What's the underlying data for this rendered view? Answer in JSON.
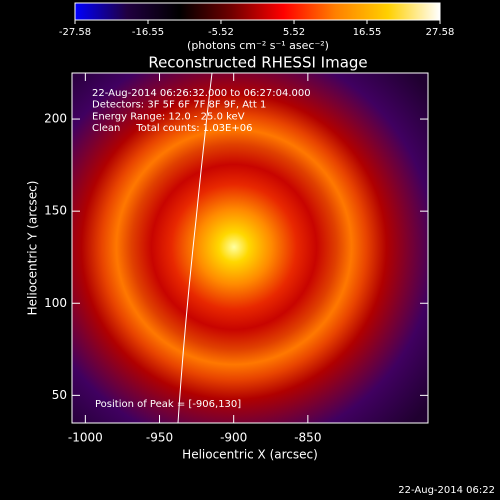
{
  "chart_data": {
    "type": "image",
    "title": "Reconstructed RHESSI Image",
    "xlabel": "Heliocentric X (arcsec)",
    "ylabel": "Heliocentric Y (arcsec)",
    "xlim": [
      -1009,
      -769
    ],
    "xticks": [
      -1000,
      -950,
      -900,
      -850
    ],
    "ylim": [
      35,
      225
    ],
    "yticks": [
      50,
      100,
      150,
      200
    ],
    "colorbar_label": "(photons cm⁻² s⁻¹ asec⁻²)",
    "colorbar_lim": [
      -27.58,
      27.58
    ],
    "colorbar_ticks": [
      -27.58,
      -16.55,
      -5.52,
      5.52,
      16.55,
      27.58
    ],
    "colorbar_colors": [
      "#0000ff",
      "#200040",
      "#000000",
      "#700000",
      "#ff0000",
      "#ff8000",
      "#ffd000",
      "#ffffff"
    ],
    "annotations": [
      "22-Aug-2014 06:26:32.000 to 06:27:04.000",
      "Detectors: 3F 5F 6F 7F 8F 9F, Att 1",
      "Energy Range: 12.0 - 25.0 keV",
      "Clean     Total counts: 1.03E+06"
    ],
    "peak_label": "Position of Peak = [-906,130]",
    "timestamp": "22-Aug-2014 06:22"
  }
}
